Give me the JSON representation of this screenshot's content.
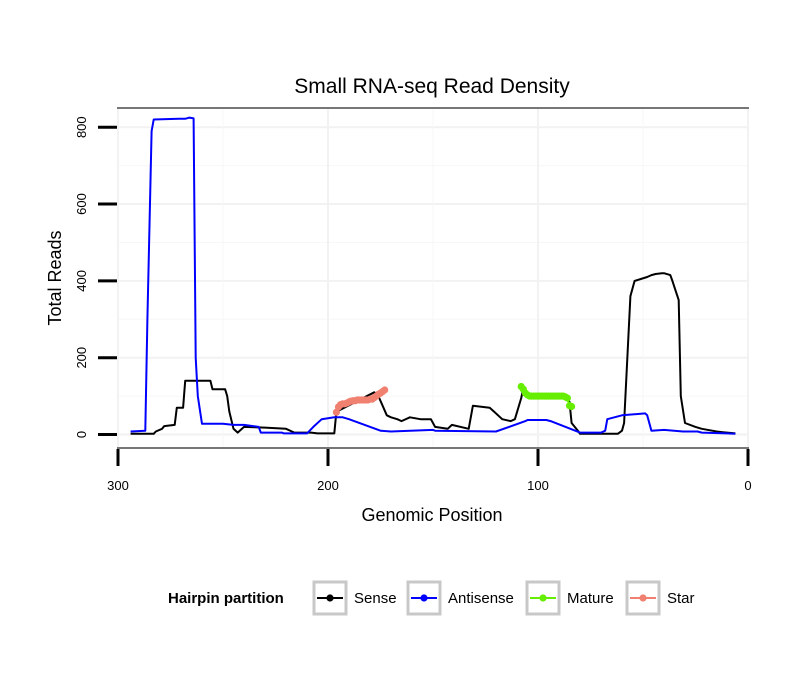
{
  "chart_data": {
    "type": "line",
    "title": "Small RNA-seq Read Density",
    "xlabel": "Genomic Position",
    "ylabel": "Total Reads",
    "xlim": [
      300,
      0
    ],
    "ylim": [
      -35,
      850
    ],
    "x_ticks": [
      300,
      200,
      100,
      0
    ],
    "x_tick_labels": [
      "300",
      "200",
      "100",
      "0"
    ],
    "y_ticks": [
      0,
      200,
      400,
      600,
      800
    ],
    "y_tick_labels": [
      "0",
      "200",
      "400",
      "600",
      "800"
    ],
    "grid": true,
    "legend": {
      "title": "Hairpin partition",
      "position": "bottom",
      "entries": [
        "Sense",
        "Antisense",
        "Mature",
        "Star"
      ]
    },
    "series": [
      {
        "name": "Sense",
        "color": "#000000",
        "markers": false,
        "x": [
          294,
          283,
          282,
          279,
          278,
          273,
          272,
          269,
          268,
          256,
          255,
          249,
          248,
          247,
          245,
          243,
          240,
          230,
          220,
          216,
          208,
          205,
          200,
          197,
          196,
          194,
          178,
          176,
          174,
          172,
          170,
          167,
          165,
          161,
          156,
          151,
          149,
          143,
          141,
          133,
          131,
          123,
          121,
          118,
          117,
          113,
          111,
          108,
          107,
          106,
          104,
          86,
          85,
          84,
          81,
          80,
          62,
          60,
          59,
          56,
          54,
          48,
          46,
          44,
          41,
          40,
          37,
          36,
          33,
          32,
          30,
          25,
          22,
          17,
          15,
          12,
          10,
          6
        ],
        "values": [
          2,
          2,
          8,
          15,
          22,
          25,
          70,
          70,
          140,
          140,
          118,
          118,
          100,
          60,
          15,
          5,
          20,
          18,
          15,
          5,
          5,
          3,
          3,
          3,
          60,
          65,
          110,
          100,
          75,
          50,
          45,
          40,
          35,
          45,
          40,
          40,
          20,
          15,
          25,
          15,
          75,
          70,
          60,
          45,
          40,
          35,
          40,
          95,
          120,
          100,
          95,
          95,
          85,
          30,
          10,
          2,
          2,
          10,
          30,
          360,
          400,
          410,
          415,
          418,
          420,
          420,
          415,
          400,
          350,
          100,
          30,
          20,
          15,
          10,
          8,
          6,
          5,
          3
        ]
      },
      {
        "name": "Antisense",
        "color": "#0000ff",
        "markers": false,
        "x": [
          294,
          287,
          286,
          284,
          283,
          271,
          268,
          266,
          265,
          264,
          263,
          262,
          260,
          250,
          245,
          240,
          233,
          232,
          222,
          221,
          210,
          207,
          203,
          197,
          195,
          193,
          190,
          175,
          170,
          150,
          149,
          120,
          106,
          105,
          98,
          96,
          94,
          80,
          70,
          68,
          67,
          60,
          49,
          48,
          46,
          40,
          31,
          24,
          22,
          10,
          6
        ],
        "values": [
          8,
          10,
          300,
          790,
          820,
          822,
          822,
          825,
          824,
          823,
          200,
          100,
          28,
          28,
          25,
          25,
          20,
          5,
          5,
          3,
          3,
          20,
          40,
          45,
          45,
          45,
          40,
          10,
          8,
          12,
          10,
          8,
          35,
          38,
          38,
          38,
          35,
          5,
          5,
          10,
          40,
          50,
          55,
          50,
          10,
          12,
          8,
          8,
          5,
          3,
          2
        ]
      },
      {
        "name": "Mature",
        "color": "#66ee00",
        "markers": true,
        "x": [
          108,
          107,
          106,
          105,
          104,
          103,
          102,
          101,
          100,
          99,
          98,
          97,
          96,
          95,
          94,
          93,
          92,
          91,
          90,
          89,
          88,
          87,
          86,
          85,
          84
        ],
        "values": [
          125,
          118,
          108,
          103,
          100,
          100,
          100,
          100,
          100,
          100,
          100,
          100,
          100,
          100,
          100,
          100,
          100,
          100,
          100,
          100,
          100,
          98,
          95,
          75,
          73
        ]
      },
      {
        "name": "Star",
        "color": "#f08070",
        "markers": true,
        "x": [
          196,
          195,
          194,
          193,
          192,
          191,
          190,
          189,
          188,
          187,
          186,
          185,
          184,
          183,
          182,
          181,
          180,
          179,
          178,
          177,
          176,
          175,
          174,
          173
        ],
        "values": [
          58,
          72,
          78,
          80,
          80,
          82,
          85,
          87,
          88,
          88,
          90,
          90,
          90,
          90,
          90,
          90,
          92,
          92,
          96,
          100,
          105,
          108,
          112,
          116
        ]
      }
    ]
  }
}
